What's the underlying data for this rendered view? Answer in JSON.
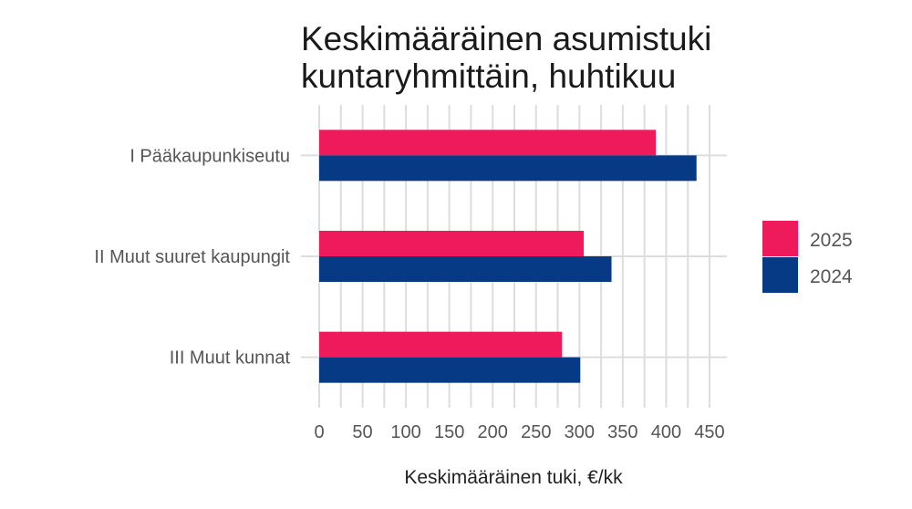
{
  "colors": {
    "2025": "#ee1a5c",
    "2024": "#063a84",
    "grid": "#dddddd",
    "background": "#ffffff"
  },
  "chart_data": {
    "type": "bar",
    "orientation": "horizontal",
    "title": [
      "Keskimääräinen asumistuki",
      "kuntaryhmittäin, huhtikuu"
    ],
    "categories": [
      "I Pääkaupunkiseutu",
      "II Muut suuret kaupungit",
      "III Muut kunnat"
    ],
    "series": [
      {
        "name": "2025",
        "color": "#ee1a5c",
        "values": [
          388,
          305,
          280
        ]
      },
      {
        "name": "2024",
        "color": "#063a84",
        "values": [
          435,
          337,
          301
        ]
      }
    ],
    "xlabel": "Keskimääräinen tuki, €/kk",
    "ylabel": "",
    "xlim": [
      0,
      470
    ],
    "xticks": [
      "0",
      "50",
      "100",
      "150",
      "200",
      "250",
      "300",
      "350",
      "400",
      "450"
    ],
    "grid": true,
    "legend_position": "right"
  }
}
